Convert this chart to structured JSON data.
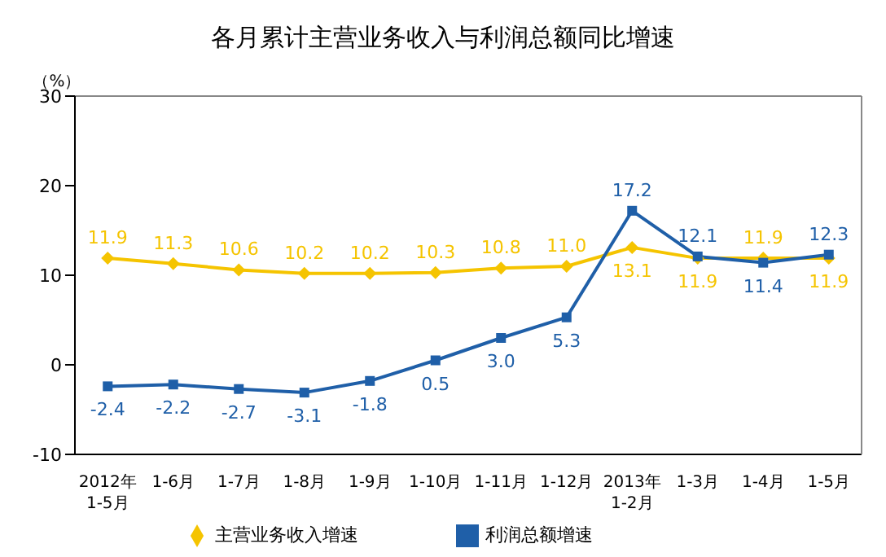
{
  "chart_data": {
    "type": "line",
    "title": "各月累计主营业务收入与利润总额同比增速",
    "ylabel": "（%）",
    "categories": [
      "2012年\n1-5月",
      "1-6月",
      "1-7月",
      "1-8月",
      "1-9月",
      "1-10月",
      "1-11月",
      "1-12月",
      "2013年\n1-2月",
      "1-3月",
      "1-4月",
      "1-5月"
    ],
    "series": [
      {
        "name": "主营业务收入增速",
        "color": "#f5c400",
        "marker": "diamond",
        "values": [
          11.9,
          11.3,
          10.6,
          10.2,
          10.2,
          10.3,
          10.8,
          11.0,
          13.1,
          11.9,
          11.9,
          11.9
        ],
        "value_labels": [
          "11.9",
          "11.3",
          "10.6",
          "10.2",
          "10.2",
          "10.3",
          "10.8",
          "11.0",
          "13.1",
          "11.9",
          "11.9",
          "11.9"
        ]
      },
      {
        "name": "利润总额增速",
        "color": "#1f5fa8",
        "marker": "square",
        "values": [
          -2.4,
          -2.2,
          -2.7,
          -3.1,
          -1.8,
          0.5,
          3.0,
          5.3,
          17.2,
          12.1,
          11.4,
          12.3
        ],
        "value_labels": [
          "-2.4",
          "-2.2",
          "-2.7",
          "-3.1",
          "-1.8",
          "0.5",
          "3.0",
          "5.3",
          "17.2",
          "12.1",
          "11.4",
          "12.3"
        ]
      }
    ],
    "ylim": [
      -10,
      30
    ],
    "yticks": [
      -10,
      0,
      10,
      20,
      30
    ],
    "grid": false,
    "legend": "bottom"
  }
}
